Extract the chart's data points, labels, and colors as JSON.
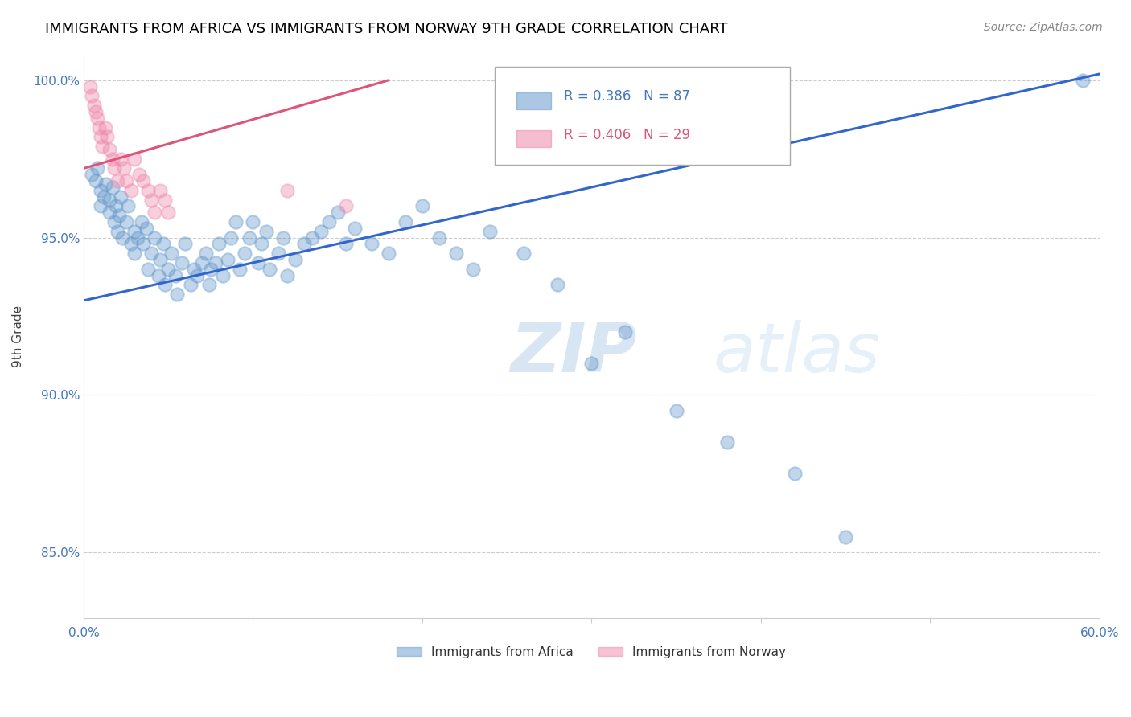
{
  "title": "IMMIGRANTS FROM AFRICA VS IMMIGRANTS FROM NORWAY 9TH GRADE CORRELATION CHART",
  "source": "Source: ZipAtlas.com",
  "ylabel": "9th Grade",
  "x_label_africa": "Immigrants from Africa",
  "x_label_norway": "Immigrants from Norway",
  "xlim": [
    0.0,
    0.6
  ],
  "ylim": [
    0.829,
    1.008
  ],
  "yticks": [
    0.85,
    0.9,
    0.95,
    1.0
  ],
  "ytick_labels": [
    "85.0%",
    "90.0%",
    "95.0%",
    "100.0%"
  ],
  "xticks": [
    0.0,
    0.1,
    0.2,
    0.3,
    0.4,
    0.5,
    0.6
  ],
  "xtick_labels": [
    "0.0%",
    "",
    "",
    "",
    "",
    "",
    "60.0%"
  ],
  "africa_color": "#6699cc",
  "norway_color": "#ee88aa",
  "africa_R": 0.386,
  "africa_N": 87,
  "norway_R": 0.406,
  "norway_N": 29,
  "africa_scatter_x": [
    0.005,
    0.007,
    0.008,
    0.01,
    0.01,
    0.012,
    0.013,
    0.015,
    0.015,
    0.017,
    0.018,
    0.019,
    0.02,
    0.021,
    0.022,
    0.023,
    0.025,
    0.026,
    0.028,
    0.03,
    0.03,
    0.032,
    0.034,
    0.035,
    0.037,
    0.038,
    0.04,
    0.042,
    0.044,
    0.045,
    0.047,
    0.048,
    0.05,
    0.052,
    0.054,
    0.055,
    0.058,
    0.06,
    0.063,
    0.065,
    0.067,
    0.07,
    0.072,
    0.074,
    0.075,
    0.078,
    0.08,
    0.082,
    0.085,
    0.087,
    0.09,
    0.092,
    0.095,
    0.098,
    0.1,
    0.103,
    0.105,
    0.108,
    0.11,
    0.115,
    0.118,
    0.12,
    0.125,
    0.13,
    0.135,
    0.14,
    0.145,
    0.15,
    0.155,
    0.16,
    0.17,
    0.18,
    0.19,
    0.2,
    0.21,
    0.22,
    0.23,
    0.24,
    0.26,
    0.28,
    0.3,
    0.32,
    0.35,
    0.38,
    0.42,
    0.45,
    0.59
  ],
  "africa_scatter_y": [
    0.97,
    0.968,
    0.972,
    0.965,
    0.96,
    0.963,
    0.967,
    0.958,
    0.962,
    0.966,
    0.955,
    0.96,
    0.952,
    0.957,
    0.963,
    0.95,
    0.955,
    0.96,
    0.948,
    0.952,
    0.945,
    0.95,
    0.955,
    0.948,
    0.953,
    0.94,
    0.945,
    0.95,
    0.938,
    0.943,
    0.948,
    0.935,
    0.94,
    0.945,
    0.938,
    0.932,
    0.942,
    0.948,
    0.935,
    0.94,
    0.938,
    0.942,
    0.945,
    0.935,
    0.94,
    0.942,
    0.948,
    0.938,
    0.943,
    0.95,
    0.955,
    0.94,
    0.945,
    0.95,
    0.955,
    0.942,
    0.948,
    0.952,
    0.94,
    0.945,
    0.95,
    0.938,
    0.943,
    0.948,
    0.95,
    0.952,
    0.955,
    0.958,
    0.948,
    0.953,
    0.948,
    0.945,
    0.955,
    0.96,
    0.95,
    0.945,
    0.94,
    0.952,
    0.945,
    0.935,
    0.91,
    0.92,
    0.895,
    0.885,
    0.875,
    0.855,
    1.0
  ],
  "norway_scatter_x": [
    0.004,
    0.005,
    0.006,
    0.007,
    0.008,
    0.009,
    0.01,
    0.011,
    0.013,
    0.014,
    0.015,
    0.017,
    0.018,
    0.02,
    0.022,
    0.024,
    0.025,
    0.028,
    0.03,
    0.033,
    0.035,
    0.038,
    0.04,
    0.042,
    0.045,
    0.048,
    0.05,
    0.12,
    0.155
  ],
  "norway_scatter_y": [
    0.998,
    0.995,
    0.992,
    0.99,
    0.988,
    0.985,
    0.982,
    0.979,
    0.985,
    0.982,
    0.978,
    0.975,
    0.972,
    0.968,
    0.975,
    0.972,
    0.968,
    0.965,
    0.975,
    0.97,
    0.968,
    0.965,
    0.962,
    0.958,
    0.965,
    0.962,
    0.958,
    0.965,
    0.96
  ],
  "africa_trendline_x": [
    0.0,
    0.6
  ],
  "africa_trendline_y": [
    0.93,
    1.002
  ],
  "norway_trendline_x": [
    0.0,
    0.18
  ],
  "norway_trendline_y": [
    0.972,
    1.0
  ],
  "watermark_zip": "ZIP",
  "watermark_atlas": "atlas",
  "title_fontsize": 13,
  "axis_label_color": "#4477bb",
  "grid_color": "#cccccc",
  "africa_line_color": "#3366cc",
  "norway_line_color": "#dd5577"
}
